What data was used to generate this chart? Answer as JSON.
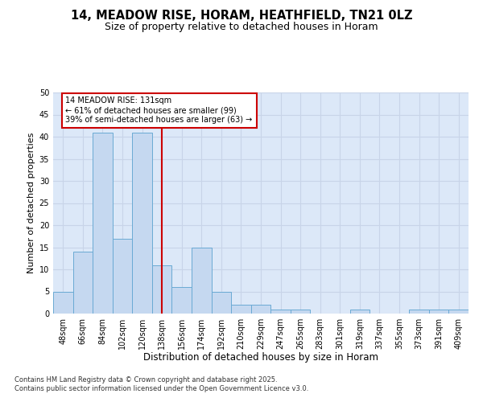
{
  "title_line1": "14, MEADOW RISE, HORAM, HEATHFIELD, TN21 0LZ",
  "title_line2": "Size of property relative to detached houses in Horam",
  "xlabel": "Distribution of detached houses by size in Horam",
  "ylabel": "Number of detached properties",
  "categories": [
    "48sqm",
    "66sqm",
    "84sqm",
    "102sqm",
    "120sqm",
    "138sqm",
    "156sqm",
    "174sqm",
    "192sqm",
    "210sqm",
    "229sqm",
    "247sqm",
    "265sqm",
    "283sqm",
    "301sqm",
    "319sqm",
    "337sqm",
    "355sqm",
    "373sqm",
    "391sqm",
    "409sqm"
  ],
  "values": [
    5,
    14,
    41,
    17,
    41,
    11,
    6,
    15,
    5,
    2,
    2,
    1,
    1,
    0,
    0,
    1,
    0,
    0,
    1,
    1,
    1
  ],
  "bar_color": "#c5d8f0",
  "bar_edge_color": "#6aaad4",
  "bar_width": 1.0,
  "vline_x": 5.0,
  "vline_color": "#cc0000",
  "annotation_text": "14 MEADOW RISE: 131sqm\n← 61% of detached houses are smaller (99)\n39% of semi-detached houses are larger (63) →",
  "annotation_box_color": "#ffffff",
  "annotation_box_edge_color": "#cc0000",
  "annotation_fontsize": 7,
  "ylim": [
    0,
    50
  ],
  "yticks": [
    0,
    5,
    10,
    15,
    20,
    25,
    30,
    35,
    40,
    45,
    50
  ],
  "grid_color": "#c8d4e8",
  "background_color": "#dce8f8",
  "footnote": "Contains HM Land Registry data © Crown copyright and database right 2025.\nContains public sector information licensed under the Open Government Licence v3.0.",
  "title_fontsize": 10.5,
  "subtitle_fontsize": 9,
  "xlabel_fontsize": 8.5,
  "ylabel_fontsize": 8,
  "tick_fontsize": 7,
  "footnote_fontsize": 6
}
